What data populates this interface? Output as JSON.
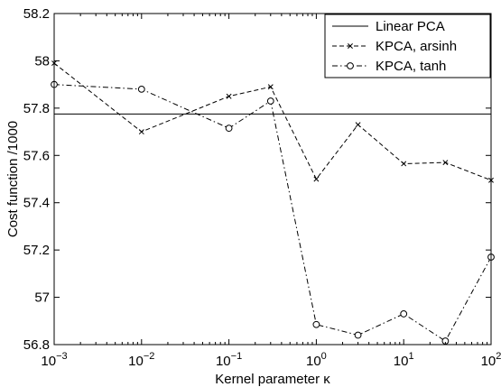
{
  "chart_data": {
    "type": "line",
    "xlabel": "Kernel parameter κ",
    "ylabel": "Cost function /1000",
    "x_scale": "log",
    "xlim": [
      0.001,
      100
    ],
    "ylim": [
      56.8,
      58.2
    ],
    "grid": false,
    "legend_position": "top-right",
    "x_ticks": [
      {
        "base": "10",
        "exp": "−3",
        "value": 0.001
      },
      {
        "base": "10",
        "exp": "−2",
        "value": 0.01
      },
      {
        "base": "10",
        "exp": "−1",
        "value": 0.1
      },
      {
        "base": "10",
        "exp": "0",
        "value": 1
      },
      {
        "base": "10",
        "exp": "1",
        "value": 10
      },
      {
        "base": "10",
        "exp": "2",
        "value": 100
      }
    ],
    "y_ticks": [
      "56.8",
      "57",
      "57.2",
      "57.4",
      "57.6",
      "57.8",
      "58",
      "58.2"
    ],
    "series": [
      {
        "name": "Linear PCA",
        "style": "solid",
        "marker": "none",
        "x": [
          0.001,
          100
        ],
        "y": [
          57.775,
          57.775
        ]
      },
      {
        "name": "KPCA, arsinh",
        "style": "dashed",
        "marker": "x",
        "x": [
          0.001,
          0.01,
          0.1,
          0.3,
          1,
          3,
          10,
          30,
          100
        ],
        "y": [
          57.99,
          57.7,
          57.85,
          57.89,
          57.5,
          57.73,
          57.565,
          57.57,
          57.495
        ]
      },
      {
        "name": "KPCA, tanh",
        "style": "dashdot",
        "marker": "o",
        "x": [
          0.001,
          0.01,
          0.1,
          0.3,
          1,
          3,
          10,
          30,
          100
        ],
        "y": [
          57.9,
          57.88,
          57.715,
          57.83,
          56.885,
          56.84,
          56.93,
          56.815,
          57.17
        ]
      }
    ]
  }
}
